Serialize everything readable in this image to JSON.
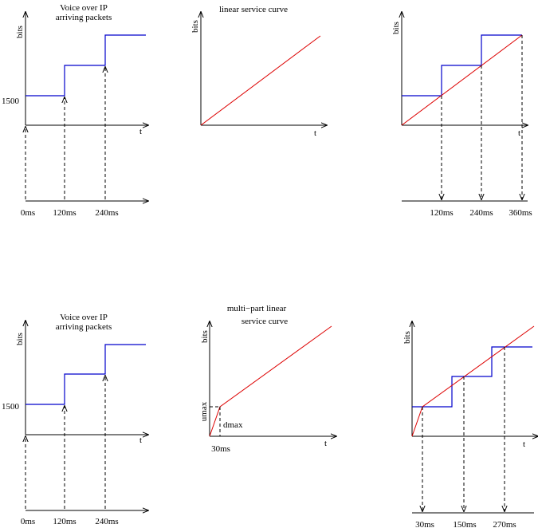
{
  "panel1": {
    "title1": "Voice over IP",
    "title2": "arriving packets",
    "ylabel": "bits",
    "tlabel": "t",
    "ytick": "1500",
    "times": [
      "0ms",
      "120ms",
      "240ms"
    ]
  },
  "panel2": {
    "title": "linear service curve",
    "ylabel": "bits",
    "tlabel": "t"
  },
  "panel3": {
    "ylabel": "bits",
    "tlabel": "t",
    "times": [
      "120ms",
      "240ms",
      "360ms"
    ]
  },
  "panel4": {
    "title1": "Voice over IP",
    "title2": "arriving packets",
    "ylabel": "bits",
    "tlabel": "t",
    "ytick": "1500",
    "times": [
      "0ms",
      "120ms",
      "240ms"
    ]
  },
  "panel5": {
    "title1": "multi−part linear",
    "title2": "service curve",
    "ylabel": "bits",
    "tlabel": "t",
    "umax": "umax",
    "dmax": "dmax",
    "time": "30ms"
  },
  "panel6": {
    "ylabel": "bits",
    "tlabel": "t",
    "times": [
      "30ms",
      "150ms",
      "270ms"
    ]
  },
  "colors": {
    "arrival": "#0000cc",
    "service": "#dd0000"
  }
}
